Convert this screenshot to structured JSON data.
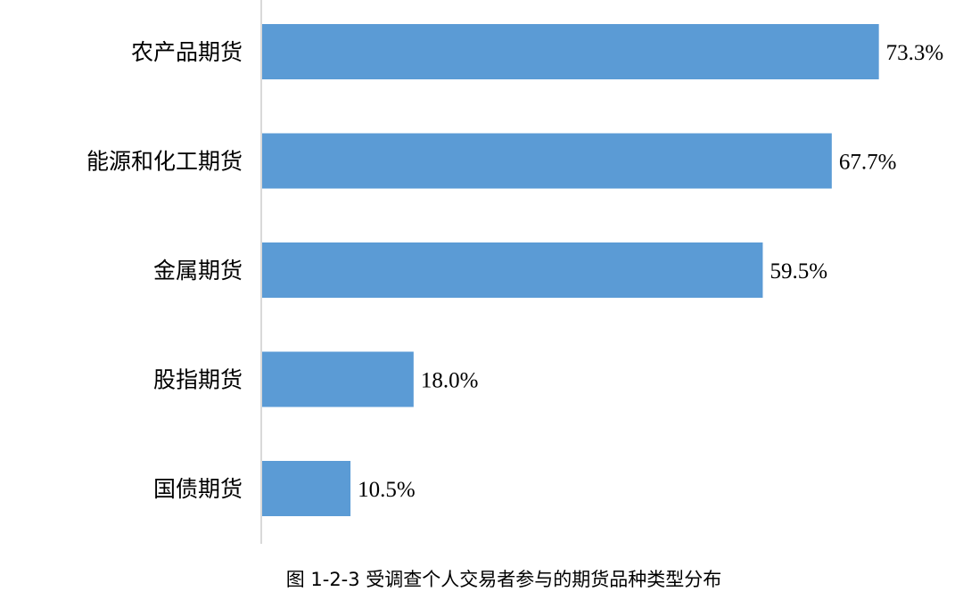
{
  "caption": "图 1-2-3 受调查个人交易者参与的期货品种类型分布",
  "chart_data": {
    "type": "bar",
    "orientation": "horizontal",
    "categories": [
      "农产品期货",
      "能源和化工期货",
      "金属期货",
      "股指期货",
      "国债期货"
    ],
    "values": [
      73.3,
      67.7,
      59.5,
      18.0,
      10.5
    ],
    "value_labels": [
      "73.3%",
      "67.7%",
      "59.5%",
      "18.0%",
      "10.5%"
    ],
    "unit": "%",
    "xlim": [
      0,
      100
    ],
    "grid": false,
    "legend": "none",
    "bar_color": "#5B9BD5",
    "axis_color": "#D9D9D9"
  }
}
